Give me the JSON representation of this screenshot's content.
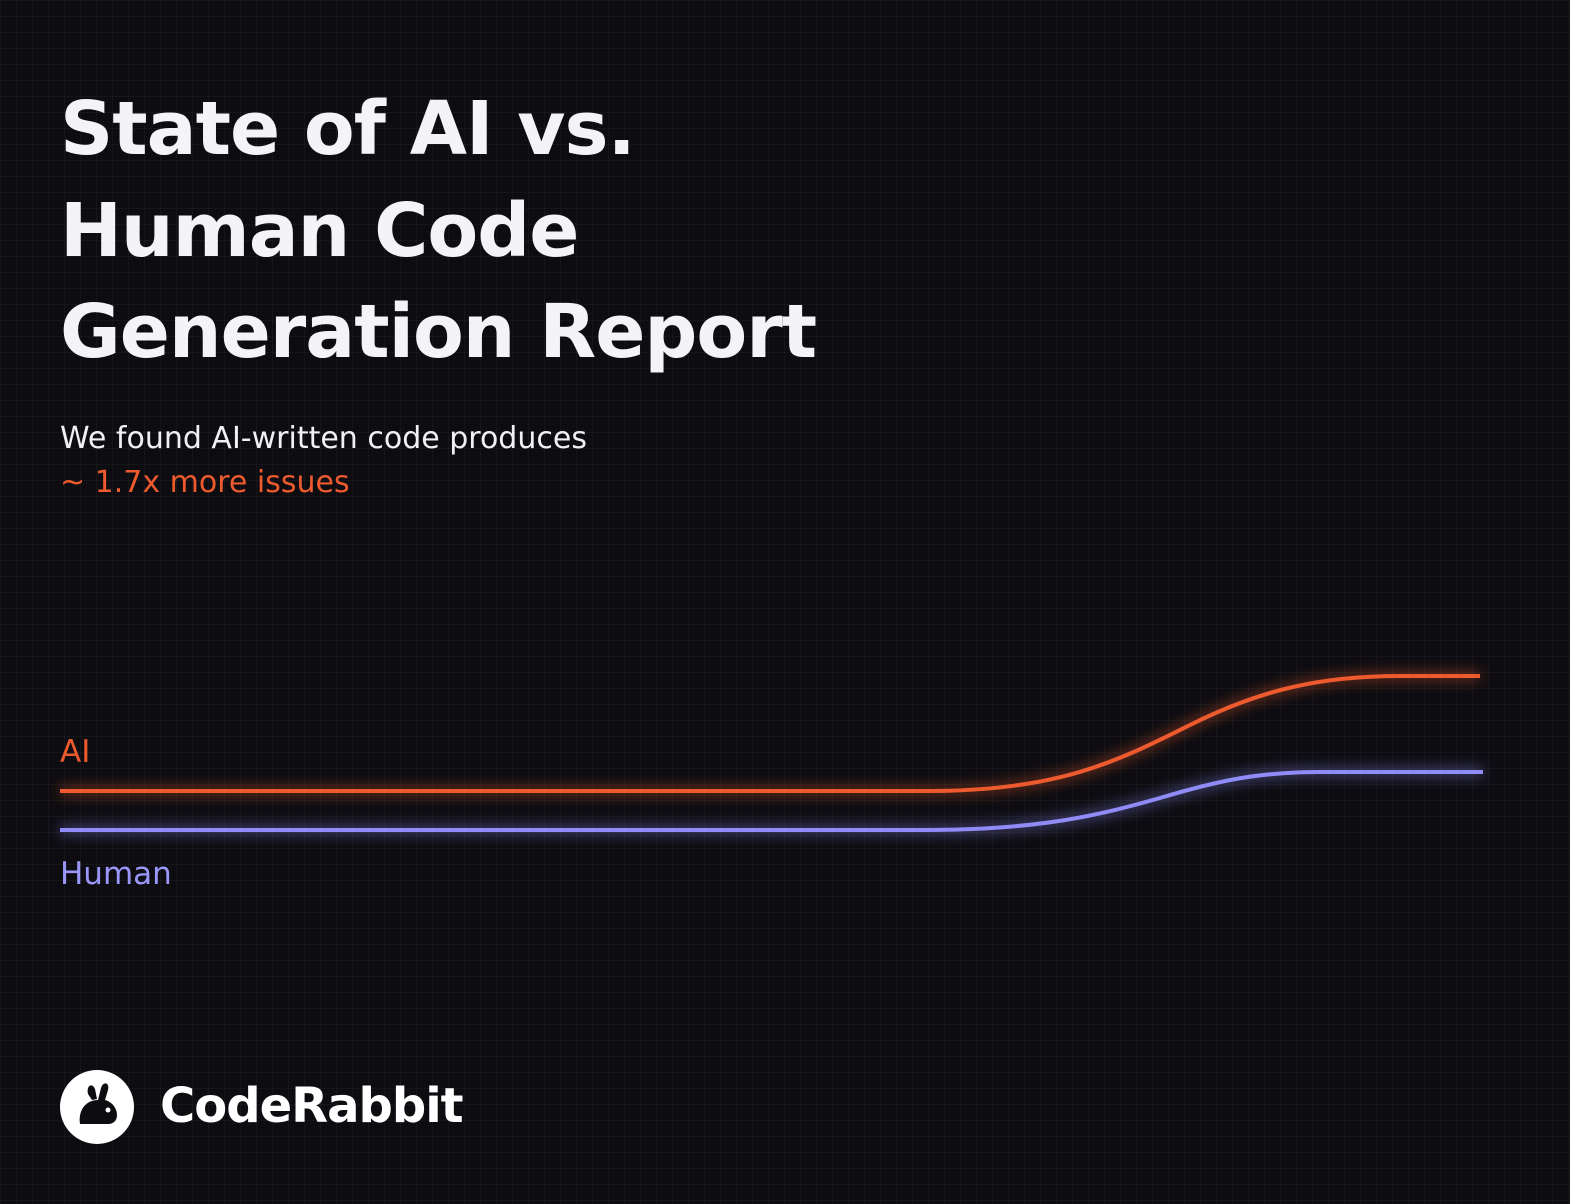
{
  "header": {
    "title_lines": [
      "State of AI vs.",
      "Human Code",
      "Generation Report"
    ],
    "subtitle": "We found AI-written code produces",
    "highlight": "~ 1.7x more issues"
  },
  "legend": {
    "ai": "AI",
    "human": "Human"
  },
  "footer": {
    "brand": "CodeRabbit"
  }
}
